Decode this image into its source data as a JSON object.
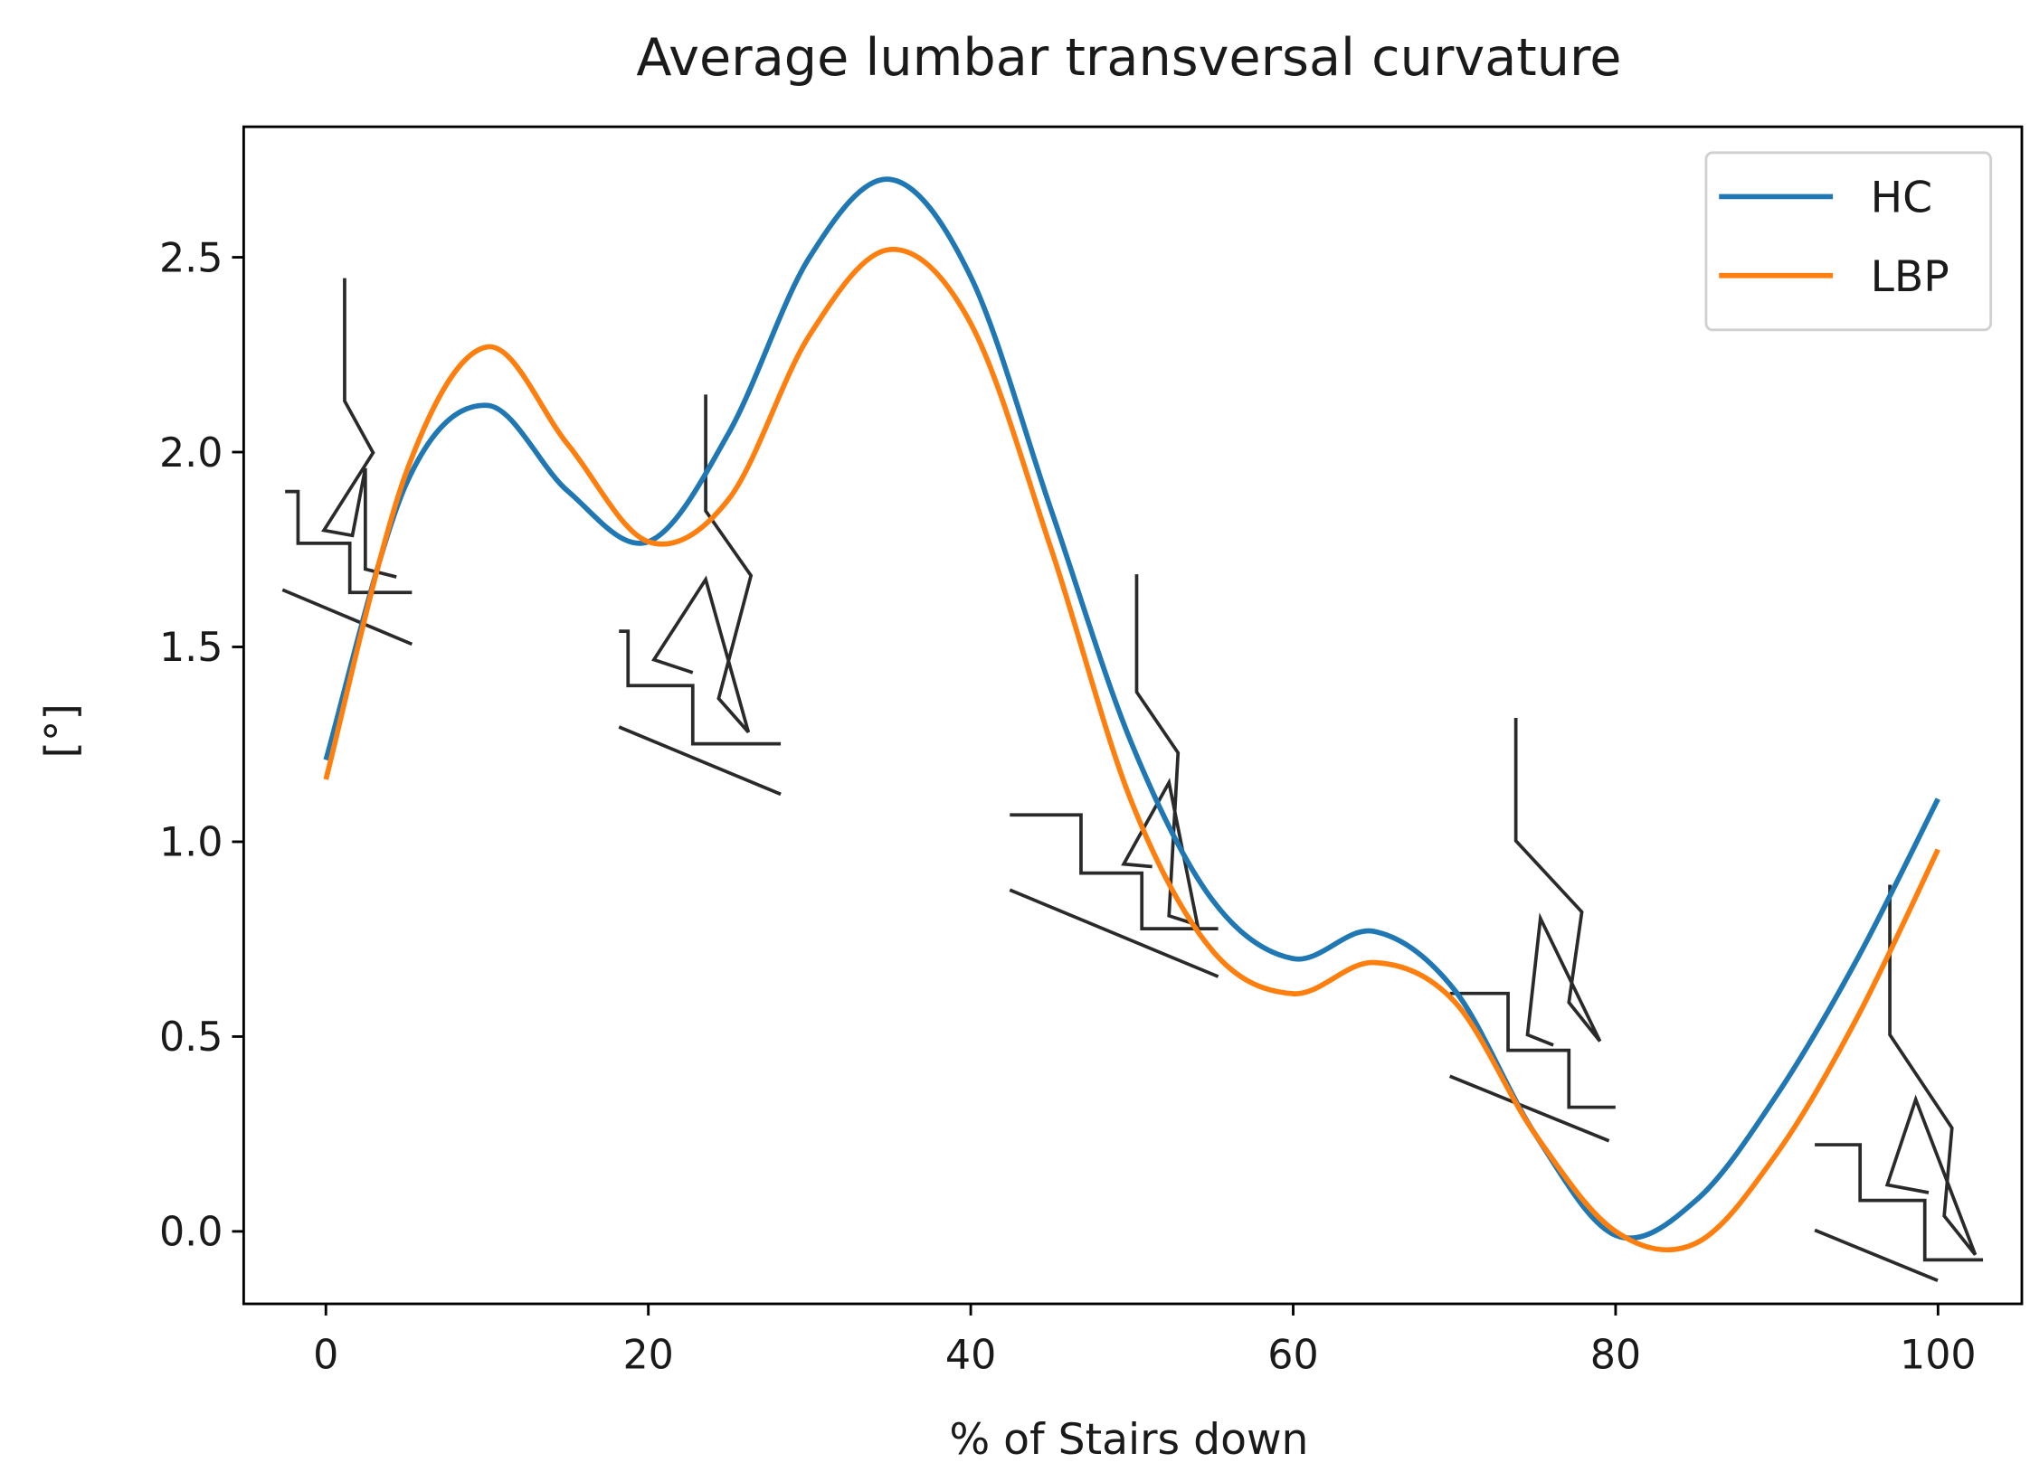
{
  "chart_data": {
    "type": "line",
    "title": "Average lumbar transversal curvature",
    "x_label": "% of Stairs down",
    "y_label": "[°]",
    "x": [
      0,
      5,
      10,
      15,
      20,
      25,
      30,
      35,
      40,
      45,
      50,
      55,
      60,
      65,
      70,
      75,
      80,
      85,
      90,
      95,
      100
    ],
    "series": [
      {
        "name": "HC",
        "color": "#1f77b4",
        "values": [
          1.21,
          1.92,
          2.12,
          1.9,
          1.77,
          2.05,
          2.5,
          2.7,
          2.45,
          1.85,
          1.25,
          0.85,
          0.7,
          0.77,
          0.62,
          0.25,
          -0.01,
          0.08,
          0.35,
          0.7,
          1.11
        ]
      },
      {
        "name": "LBP",
        "color": "#ff7f0e",
        "values": [
          1.16,
          1.95,
          2.27,
          2.02,
          1.77,
          1.88,
          2.3,
          2.52,
          2.33,
          1.75,
          1.1,
          0.72,
          0.61,
          0.69,
          0.59,
          0.25,
          0.0,
          -0.03,
          0.2,
          0.55,
          0.98
        ]
      }
    ],
    "xlim": [
      -5.1,
      105.2
    ],
    "ylim": [
      -0.186,
      2.835
    ],
    "xticks": [
      0,
      20,
      40,
      60,
      80,
      100
    ],
    "yticks": [
      {
        "value": 0,
        "label": "0.0"
      },
      0.5,
      {
        "value": 1,
        "label": "1.0"
      },
      1.5,
      {
        "value": 2,
        "label": "2.0"
      },
      2.5
    ],
    "legend": "upper right"
  }
}
